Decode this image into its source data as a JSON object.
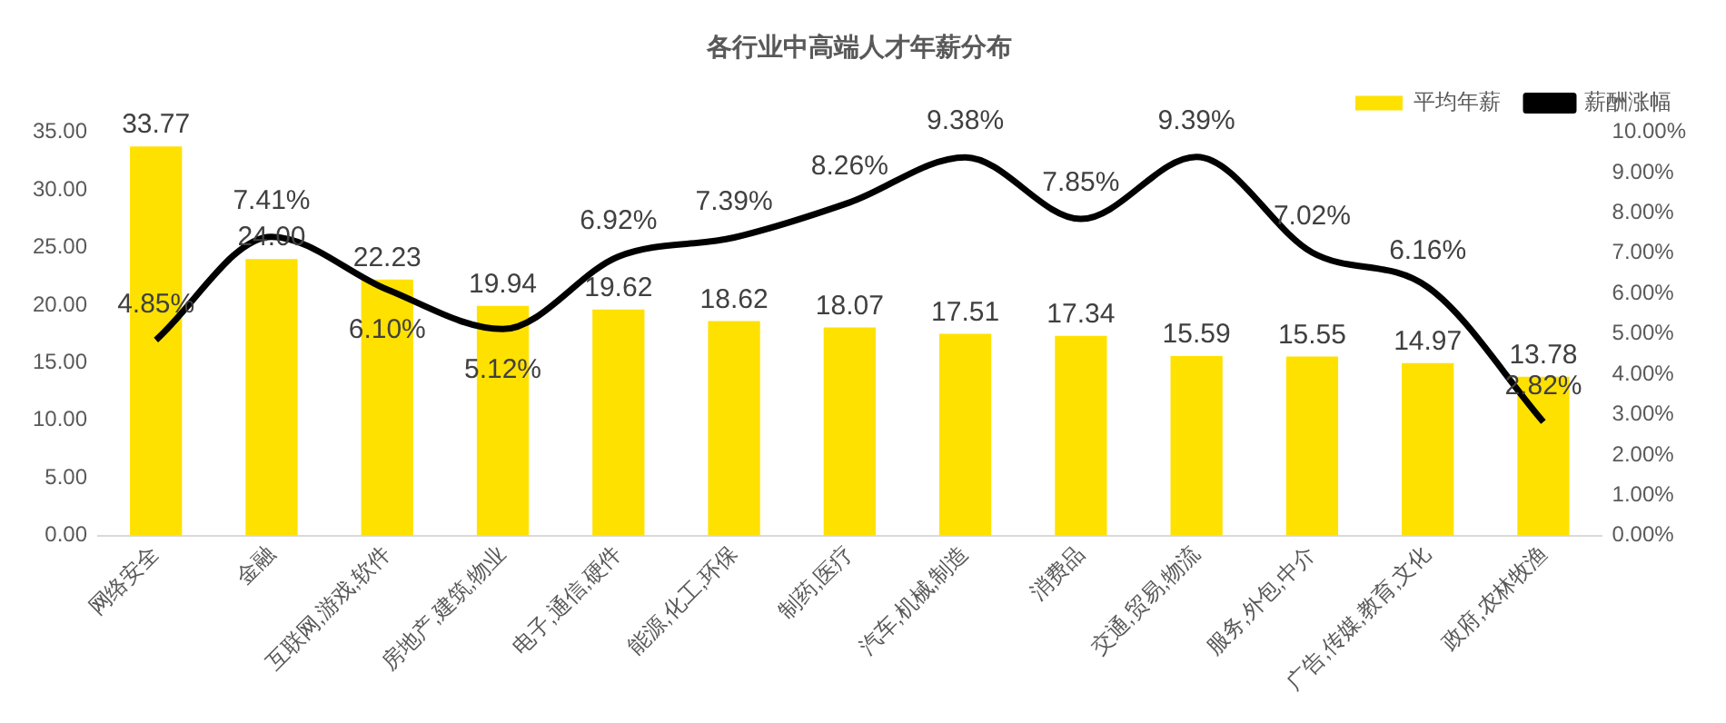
{
  "chart_data": {
    "type": "bar",
    "title": "各行业中高端人才年薪分布",
    "categories": [
      "网络安全",
      "金融",
      "互联网,游戏,软件",
      "房地产,建筑,物业",
      "电子,通信,硬件",
      "能源,化工,环保",
      "制药,医疗",
      "汽车,机械,制造",
      "消费品",
      "交通,贸易,物流",
      "服务,外包,中介",
      "广告,传媒,教育,文化",
      "政府,农林牧渔"
    ],
    "series": [
      {
        "name": "平均年薪",
        "color": "#ffe100",
        "values": [
          33.77,
          24.0,
          22.23,
          19.94,
          19.62,
          18.62,
          18.07,
          17.51,
          17.34,
          15.59,
          15.55,
          14.97,
          13.78
        ],
        "value_labels": [
          "33.77",
          "24.00",
          "22.23",
          "19.94",
          "19.62",
          "18.62",
          "18.07",
          "17.51",
          "17.34",
          "15.59",
          "15.55",
          "14.97",
          "13.78"
        ]
      },
      {
        "name": "薪酬涨幅",
        "type": "line",
        "axis": "y2",
        "color": "#000000",
        "values": [
          4.85,
          7.41,
          6.1,
          5.12,
          6.92,
          7.39,
          8.26,
          9.38,
          7.85,
          9.39,
          7.02,
          6.16,
          2.82
        ],
        "value_labels": [
          "4.85%",
          "7.41%",
          "6.10%",
          "5.12%",
          "6.92%",
          "7.39%",
          "8.26%",
          "9.38%",
          "7.85%",
          "9.39%",
          "7.02%",
          "6.16%",
          "2.82%"
        ]
      }
    ],
    "ylim": [
      0,
      35
    ],
    "yticks": [
      {
        "value": 0,
        "label": "0.00"
      },
      {
        "value": 5,
        "label": "5.00"
      },
      {
        "value": 10,
        "label": "10.00"
      },
      {
        "value": 15,
        "label": "15.00"
      },
      {
        "value": 20,
        "label": "20.00"
      },
      {
        "value": 25,
        "label": "25.00"
      },
      {
        "value": 30,
        "label": "30.00"
      },
      {
        "value": 35,
        "label": "35.00"
      }
    ],
    "y2lim": [
      0,
      10
    ],
    "y2ticks": [
      {
        "value": 0,
        "label": "0.00%"
      },
      {
        "value": 1,
        "label": "1.00%"
      },
      {
        "value": 2,
        "label": "2.00%"
      },
      {
        "value": 3,
        "label": "3.00%"
      },
      {
        "value": 4,
        "label": "4.00%"
      },
      {
        "value": 5,
        "label": "5.00%"
      },
      {
        "value": 6,
        "label": "6.00%"
      },
      {
        "value": 7,
        "label": "7.00%"
      },
      {
        "value": 8,
        "label": "8.00%"
      },
      {
        "value": 9,
        "label": "9.00%"
      },
      {
        "value": 10,
        "label": "10.00%"
      }
    ],
    "grid": false,
    "legend": "top right"
  }
}
